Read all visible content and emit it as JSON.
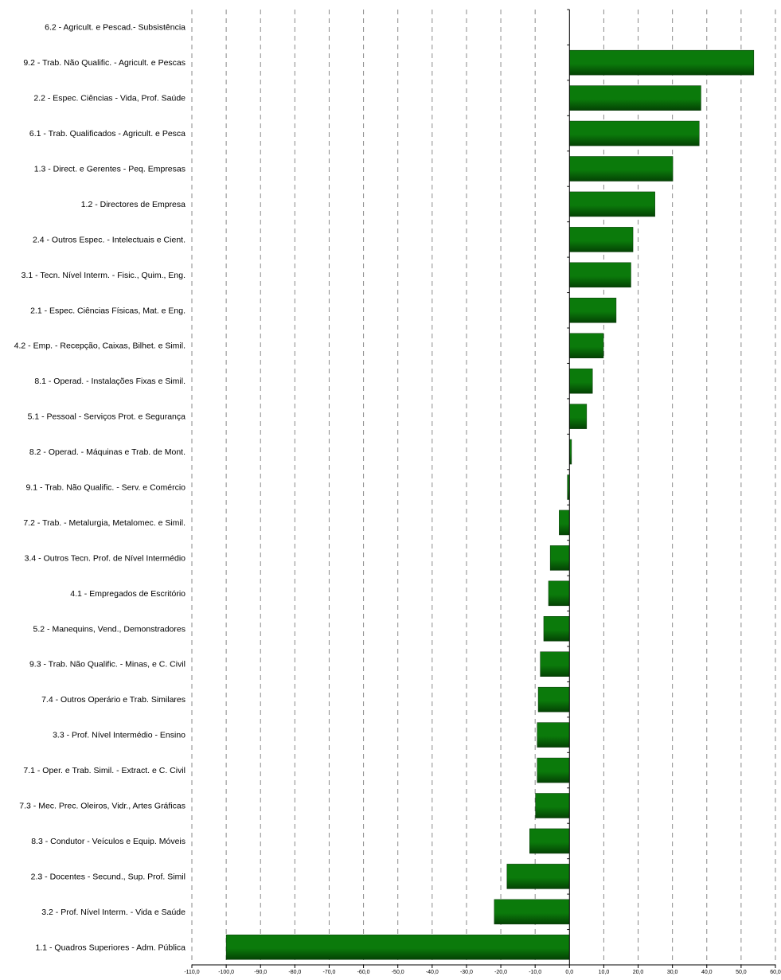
{
  "chart_data": {
    "type": "bar",
    "orientation": "horizontal",
    "title": "",
    "xlabel": "",
    "ylabel": "",
    "xlim": [
      -110,
      60
    ],
    "x_ticks": [
      -110,
      -100,
      -90,
      -80,
      -70,
      -60,
      -50,
      -40,
      -30,
      -20,
      -10,
      0,
      10,
      20,
      30,
      40,
      50,
      60
    ],
    "x_tick_labels": [
      "-110,0",
      "-100,0",
      "-90,0",
      "-80,0",
      "-70,0",
      "-60,0",
      "-50,0",
      "-40,0",
      "-30,0",
      "-20,0",
      "-10,0",
      "0,0",
      "10,0",
      "20,0",
      "30,0",
      "40,0",
      "50,0",
      "60,0"
    ],
    "grid": "vertical dashed",
    "legend": "none",
    "bar_color": "#0b7a0b",
    "bar_color_dark": "#044204",
    "categories": [
      "6.2 - Agricult. e Pescad.- Subsistência",
      "9.2 - Trab. Não Qualific. - Agricult. e Pescas",
      "2.2 - Espec. Ciências - Vida, Prof. Saúde",
      "6.1 - Trab. Qualificados - Agricult. e Pesca",
      "1.3 - Direct. e Gerentes - Peq. Empresas",
      "1.2 - Directores de Empresa",
      "2.4 - Outros Espec. - Intelectuais e Cient.",
      "3.1 - Tecn. Nível Interm. - Fisic., Quim., Eng.",
      "2.1 - Espec. Ciências Físicas, Mat. e Eng.",
      "4.2 - Emp. - Recepção, Caixas, Bilhet. e Simil.",
      "8.1 - Operad. - Instalações Fixas e Simil.",
      "5.1 - Pessoal - Serviços Prot. e Segurança",
      "8.2 - Operad. - Máquinas e Trab. de Mont.",
      "9.1 - Trab. Não Qualific. - Serv. e Comércio",
      "7.2 - Trab. - Metalurgia, Metalomec. e Simil.",
      "3.4 - Outros Tecn. Prof. de Nível Intermédio",
      "4.1 - Empregados de Escritório",
      "5.2 - Manequins, Vend., Demonstradores",
      "9.3 - Trab. Não Qualific. - Minas, e C. Civil",
      "7.4 - Outros Operário e Trab. Similares",
      "3.3 - Prof. Nível Intermédio - Ensino",
      "7.1 - Oper. e Trab. Simil. - Extract. e C. Civil",
      "7.3 - Mec. Prec. Oleiros, Vidr., Artes Gráficas",
      "8.3 - Condutor - Veículos e Equip. Móveis",
      "2.3 - Docentes - Secund., Sup. Prof. Simil",
      "3.2 - Prof. Nível Interm. - Vida e Saúde",
      "1.1 - Quadros Superiores - Adm. Pública"
    ],
    "values": [
      0,
      53.7,
      38.3,
      37.8,
      30.1,
      24.9,
      18.5,
      17.9,
      13.6,
      9.9,
      6.7,
      5.0,
      0.6,
      -0.6,
      -3.0,
      -5.6,
      -6.1,
      -7.5,
      -8.5,
      -9.1,
      -9.4,
      -9.4,
      -9.9,
      -11.6,
      -18.2,
      -21.9,
      -100.0
    ]
  }
}
